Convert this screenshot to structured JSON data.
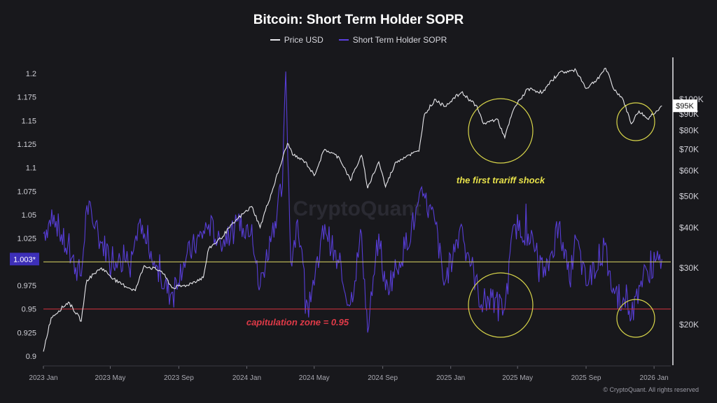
{
  "chart_data": {
    "type": "line",
    "title": "Bitcoin: Short Term Holder SOPR",
    "legend_placement": "top-center",
    "grid": false,
    "x_ticks": [
      "2023 Jan",
      "2023 May",
      "2023 Sep",
      "2024 Jan",
      "2024 May",
      "2024 Sep",
      "2025 Jan",
      "2025 May",
      "2025 Sep",
      "2026 Jan"
    ],
    "x_range": [
      "2023-01-01",
      "2026-01-31"
    ],
    "left_axis": {
      "ticks": [
        1.2,
        1.175,
        1.15,
        1.125,
        1.1,
        1.075,
        1.05,
        1.025,
        0.975,
        0.95,
        0.925,
        0.9
      ],
      "ylim": [
        0.9,
        1.2
      ],
      "current_label": "1.003*"
    },
    "right_axis": {
      "scale": "log",
      "ticks": [
        "$20K",
        "$30K",
        "$40K",
        "$50K",
        "$60K",
        "$70K",
        "$80K",
        "$90K",
        "$100K"
      ],
      "tick_values": [
        20000,
        30000,
        40000,
        50000,
        60000,
        70000,
        80000,
        90000,
        100000
      ],
      "current_label": "$95K"
    },
    "series": [
      {
        "name": "Price USD",
        "color": "#e8e8ec",
        "axis": "right",
        "points": [
          [
            "2023-01-01",
            16500
          ],
          [
            "2023-01-15",
            21000
          ],
          [
            "2023-02-15",
            23500
          ],
          [
            "2023-03-10",
            20500
          ],
          [
            "2023-03-20",
            27500
          ],
          [
            "2023-04-15",
            30000
          ],
          [
            "2023-05-15",
            27000
          ],
          [
            "2023-06-15",
            25500
          ],
          [
            "2023-07-01",
            30500
          ],
          [
            "2023-08-01",
            29300
          ],
          [
            "2023-08-20",
            26000
          ],
          [
            "2023-09-15",
            26500
          ],
          [
            "2023-10-15",
            28000
          ],
          [
            "2023-10-25",
            34500
          ],
          [
            "2023-11-15",
            37000
          ],
          [
            "2023-12-15",
            42500
          ],
          [
            "2024-01-10",
            46500
          ],
          [
            "2024-01-25",
            40000
          ],
          [
            "2024-02-15",
            51500
          ],
          [
            "2024-03-01",
            62000
          ],
          [
            "2024-03-14",
            73000
          ],
          [
            "2024-03-25",
            67000
          ],
          [
            "2024-04-15",
            64000
          ],
          [
            "2024-05-01",
            58000
          ],
          [
            "2024-05-20",
            70000
          ],
          [
            "2024-06-15",
            66000
          ],
          [
            "2024-07-05",
            56000
          ],
          [
            "2024-07-25",
            67000
          ],
          [
            "2024-08-05",
            53000
          ],
          [
            "2024-08-25",
            64000
          ],
          [
            "2024-09-06",
            53500
          ],
          [
            "2024-09-25",
            64000
          ],
          [
            "2024-10-15",
            67000
          ],
          [
            "2024-11-05",
            69000
          ],
          [
            "2024-11-15",
            90000
          ],
          [
            "2024-12-05",
            100000
          ],
          [
            "2024-12-20",
            95000
          ],
          [
            "2025-01-20",
            105000
          ],
          [
            "2025-02-15",
            96000
          ],
          [
            "2025-03-01",
            84000
          ],
          [
            "2025-03-25",
            87000
          ],
          [
            "2025-04-08",
            76000
          ],
          [
            "2025-04-25",
            94000
          ],
          [
            "2025-05-20",
            108000
          ],
          [
            "2025-06-15",
            105000
          ],
          [
            "2025-07-14",
            121000
          ],
          [
            "2025-08-14",
            123000
          ],
          [
            "2025-09-01",
            108000
          ],
          [
            "2025-09-20",
            115000
          ],
          [
            "2025-10-06",
            125000
          ],
          [
            "2025-10-20",
            108000
          ],
          [
            "2025-11-05",
            101000
          ],
          [
            "2025-11-21",
            84000
          ],
          [
            "2025-12-05",
            92000
          ],
          [
            "2025-12-20",
            87000
          ],
          [
            "2026-01-05",
            92000
          ],
          [
            "2026-01-15",
            95500
          ]
        ]
      },
      {
        "name": "Short Term Holder SOPR",
        "color": "#5b3fe0",
        "axis": "left",
        "points": [
          [
            "2023-01-01",
            1.03
          ],
          [
            "2023-01-10",
            1.04
          ],
          [
            "2023-01-20",
            1.05
          ],
          [
            "2023-02-10",
            1.015
          ],
          [
            "2023-03-10",
            0.985
          ],
          [
            "2023-03-20",
            1.06
          ],
          [
            "2023-04-15",
            1.02
          ],
          [
            "2023-05-15",
            1.0
          ],
          [
            "2023-06-10",
            1.008
          ],
          [
            "2023-06-20",
            1.04
          ],
          [
            "2023-07-15",
            1.0
          ],
          [
            "2023-08-17",
            0.965
          ],
          [
            "2023-09-10",
            1.0
          ],
          [
            "2023-10-25",
            1.04
          ],
          [
            "2023-11-15",
            1.02
          ],
          [
            "2023-12-10",
            1.035
          ],
          [
            "2024-01-10",
            1.04
          ],
          [
            "2024-01-23",
            0.97
          ],
          [
            "2024-02-15",
            1.03
          ],
          [
            "2024-03-05",
            1.08
          ],
          [
            "2024-03-11",
            1.202
          ],
          [
            "2024-03-20",
            1.0
          ],
          [
            "2024-04-01",
            1.045
          ],
          [
            "2024-04-17",
            0.96
          ],
          [
            "2024-05-01",
            0.975
          ],
          [
            "2024-05-20",
            1.04
          ],
          [
            "2024-06-20",
            0.98
          ],
          [
            "2024-07-05",
            0.955
          ],
          [
            "2024-07-25",
            1.03
          ],
          [
            "2024-08-05",
            0.925
          ],
          [
            "2024-08-25",
            1.03
          ],
          [
            "2024-09-06",
            0.97
          ],
          [
            "2024-10-01",
            1.0
          ],
          [
            "2024-11-12",
            1.07
          ],
          [
            "2024-12-05",
            1.04
          ],
          [
            "2024-12-20",
            0.975
          ],
          [
            "2025-01-20",
            1.04
          ],
          [
            "2025-02-25",
            0.955
          ],
          [
            "2025-03-10",
            0.96
          ],
          [
            "2025-04-08",
            0.95
          ],
          [
            "2025-04-25",
            1.04
          ],
          [
            "2025-05-20",
            1.03
          ],
          [
            "2025-06-20",
            0.985
          ],
          [
            "2025-07-14",
            1.04
          ],
          [
            "2025-08-02",
            0.98
          ],
          [
            "2025-08-14",
            1.025
          ],
          [
            "2025-09-01",
            0.975
          ],
          [
            "2025-10-06",
            1.02
          ],
          [
            "2025-10-10",
            0.985
          ],
          [
            "2025-11-05",
            0.955
          ],
          [
            "2025-11-14",
            0.965
          ],
          [
            "2025-11-21",
            0.94
          ],
          [
            "2025-12-05",
            0.975
          ],
          [
            "2025-12-20",
            0.99
          ],
          [
            "2026-01-15",
            1.003
          ]
        ]
      }
    ],
    "reference_lines": [
      {
        "value": 1.0,
        "color": "#c9c45a",
        "axis": "left"
      },
      {
        "value": 0.95,
        "color": "#c0303a",
        "axis": "left"
      }
    ],
    "annotations": [
      {
        "text": "the first trariff shock",
        "color": "#e6e04a"
      },
      {
        "text": "capitulation zone = 0.95",
        "color": "#e03a48"
      }
    ],
    "watermark": "CryptoQuant"
  },
  "copyright": "© CryptoQuant. All rights reserved"
}
